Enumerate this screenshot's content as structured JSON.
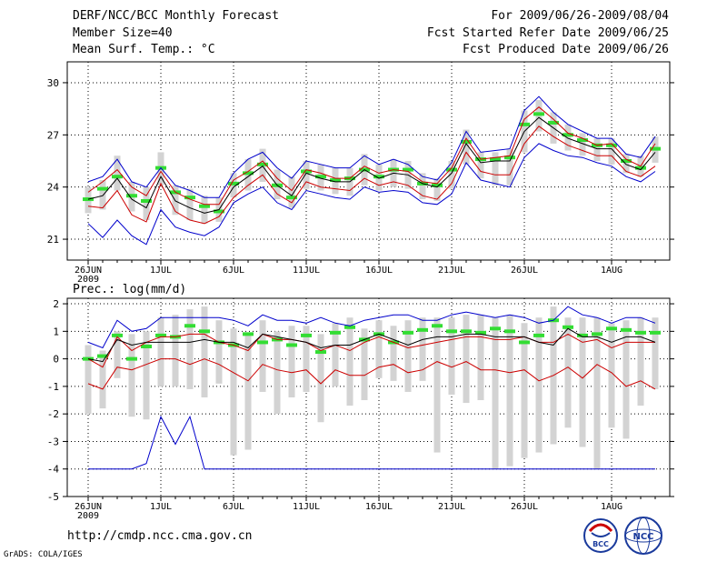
{
  "header": {
    "title": "DERF/NCC/BCC Monthly Forecast",
    "member_size": "Member Size=40",
    "period": "For 2009/06/26-2009/08/04",
    "fcst_started": "Fcst Started Refer Date 2009/06/25",
    "fcst_produced": "Fcst Produced Date 2009/06/26"
  },
  "footer": {
    "url": "http://cmdp.ncc.cma.gov.cn",
    "credit": "GrADS: COLA/IGES",
    "logo_bcc": "BCC",
    "logo_ncc": "NCC"
  },
  "colors": {
    "spread": "#d3d3d3",
    "envelope": "#0000cc",
    "mean": "#000000",
    "bounds": "#cc0000",
    "median": "#33dd33"
  },
  "chart_data": [
    {
      "type": "box-time-series",
      "title": "Mean Surf. Temp.: °C",
      "x_start": 0,
      "x_tick_labels": [
        "26JUN",
        "1JUL",
        "6JUL",
        "11JUL",
        "16JUL",
        "21JUL",
        "26JUL",
        "1AUG"
      ],
      "x_tick_days": [
        0,
        5,
        10,
        15,
        20,
        25,
        30,
        36
      ],
      "x_year_label": "2009",
      "ylim": [
        19.8,
        31.2
      ],
      "yticks": [
        21,
        24,
        27,
        30
      ],
      "days": 40,
      "series": {
        "upper_envelope": [
          24.3,
          24.6,
          25.6,
          24.3,
          24.0,
          25.1,
          24.1,
          23.8,
          23.4,
          23.4,
          24.8,
          25.6,
          26.0,
          25.1,
          24.5,
          25.5,
          25.3,
          25.1,
          25.1,
          25.8,
          25.3,
          25.6,
          25.3,
          24.6,
          24.4,
          25.4,
          27.2,
          26.0,
          26.1,
          26.2,
          28.4,
          29.2,
          28.3,
          27.6,
          27.2,
          26.8,
          26.8,
          25.9,
          25.7,
          26.9
        ],
        "upper_red": [
          23.7,
          24.3,
          25.0,
          24.0,
          23.5,
          24.9,
          23.7,
          23.3,
          23.0,
          23.0,
          24.4,
          24.9,
          25.5,
          24.5,
          23.8,
          25.0,
          24.8,
          24.5,
          24.5,
          25.2,
          24.8,
          25.0,
          24.9,
          24.3,
          24.2,
          25.1,
          26.8,
          25.6,
          25.7,
          25.8,
          27.9,
          28.6,
          27.9,
          27.1,
          26.8,
          26.4,
          26.5,
          25.6,
          25.2,
          26.5
        ],
        "mean": [
          23.3,
          23.5,
          24.5,
          23.3,
          22.8,
          24.6,
          23.2,
          22.8,
          22.5,
          22.7,
          24.0,
          24.6,
          25.2,
          24.1,
          23.5,
          24.8,
          24.5,
          24.3,
          24.3,
          25.0,
          24.5,
          24.8,
          24.7,
          24.2,
          24.0,
          24.8,
          26.5,
          25.4,
          25.5,
          25.5,
          27.2,
          28.0,
          27.4,
          26.8,
          26.5,
          26.2,
          26.2,
          25.3,
          25.0,
          26.0
        ],
        "lower_red": [
          22.9,
          22.8,
          23.8,
          22.4,
          22.0,
          24.2,
          22.6,
          22.1,
          21.9,
          22.3,
          23.4,
          24.1,
          24.7,
          23.6,
          23.1,
          24.3,
          24.0,
          23.9,
          23.8,
          24.5,
          24.1,
          24.3,
          24.1,
          23.5,
          23.3,
          24.2,
          26.0,
          24.9,
          24.7,
          24.7,
          26.5,
          27.5,
          26.9,
          26.4,
          26.1,
          25.8,
          25.8,
          24.9,
          24.6,
          25.2
        ],
        "lower_envelope": [
          21.9,
          21.1,
          22.1,
          21.2,
          20.7,
          22.7,
          21.7,
          21.4,
          21.2,
          21.7,
          23.1,
          23.6,
          24.0,
          23.1,
          22.7,
          23.8,
          23.6,
          23.4,
          23.3,
          24.0,
          23.7,
          23.8,
          23.7,
          23.1,
          23.0,
          23.6,
          25.4,
          24.4,
          24.2,
          24.0,
          25.7,
          26.5,
          26.1,
          25.8,
          25.7,
          25.4,
          25.2,
          24.6,
          24.3,
          24.9
        ],
        "median": [
          23.3,
          23.9,
          24.6,
          23.5,
          23.2,
          25.1,
          23.7,
          23.4,
          22.9,
          22.6,
          24.2,
          24.8,
          25.3,
          24.1,
          23.4,
          24.9,
          24.6,
          24.4,
          24.5,
          25.0,
          24.6,
          25.0,
          25.0,
          24.2,
          24.1,
          25.0,
          26.6,
          25.6,
          25.6,
          25.7,
          27.6,
          28.2,
          27.7,
          27.0,
          26.7,
          26.4,
          26.4,
          25.5,
          25.1,
          26.2
        ],
        "box_top": [
          24.0,
          24.4,
          25.8,
          24.3,
          24.0,
          26.0,
          24.1,
          23.9,
          23.5,
          23.4,
          24.8,
          25.6,
          26.2,
          25.0,
          24.6,
          25.5,
          25.3,
          25.1,
          25.1,
          25.9,
          25.3,
          25.6,
          25.5,
          24.8,
          24.5,
          25.5,
          27.3,
          26.0,
          26.0,
          26.2,
          28.4,
          29.0,
          28.3,
          27.6,
          27.1,
          26.8,
          26.8,
          25.9,
          25.8,
          26.9
        ],
        "box_bottom": [
          22.5,
          22.7,
          23.8,
          22.6,
          22.1,
          24.1,
          22.4,
          22.1,
          21.9,
          22.0,
          23.4,
          23.8,
          24.3,
          23.3,
          22.8,
          23.9,
          23.8,
          23.6,
          23.5,
          24.1,
          23.8,
          24.0,
          23.9,
          23.3,
          23.2,
          23.9,
          25.3,
          24.5,
          24.1,
          24.1,
          26.0,
          27.2,
          26.5,
          26.1,
          25.8,
          25.5,
          25.3,
          24.8,
          24.6,
          25.4
        ]
      }
    },
    {
      "type": "box-time-series",
      "title": "Prec.: log(mm/d)",
      "x_start": 0,
      "x_tick_labels": [
        "26JUN",
        "1JUL",
        "6JUL",
        "11JUL",
        "16JUL",
        "21JUL",
        "26JUL",
        "1AUG"
      ],
      "x_tick_days": [
        0,
        5,
        10,
        15,
        20,
        25,
        30,
        36
      ],
      "x_year_label": "2009",
      "ylim": [
        -5,
        2.2
      ],
      "yticks": [
        -5,
        -4,
        -3,
        -2,
        -1,
        0,
        1,
        2
      ],
      "days": 40,
      "series": {
        "upper_envelope": [
          0.6,
          0.4,
          1.4,
          1.0,
          1.1,
          1.5,
          1.5,
          1.5,
          1.5,
          1.5,
          1.4,
          1.2,
          1.6,
          1.4,
          1.4,
          1.3,
          1.5,
          1.3,
          1.2,
          1.4,
          1.5,
          1.6,
          1.6,
          1.4,
          1.4,
          1.6,
          1.7,
          1.6,
          1.5,
          1.6,
          1.5,
          1.3,
          1.4,
          1.9,
          1.6,
          1.5,
          1.3,
          1.5,
          1.5,
          1.3
        ],
        "upper_red": [
          0.0,
          -0.3,
          0.8,
          0.3,
          0.6,
          0.8,
          0.8,
          0.9,
          0.9,
          0.6,
          0.5,
          0.3,
          0.9,
          0.7,
          0.7,
          0.6,
          0.3,
          0.5,
          0.3,
          0.6,
          0.8,
          0.6,
          0.4,
          0.5,
          0.6,
          0.7,
          0.8,
          0.8,
          0.7,
          0.7,
          0.8,
          0.6,
          0.6,
          0.9,
          0.6,
          0.7,
          0.4,
          0.6,
          0.6,
          0.6
        ],
        "mean": [
          0.0,
          -0.1,
          0.7,
          0.5,
          0.6,
          0.6,
          0.6,
          0.6,
          0.7,
          0.6,
          0.6,
          0.4,
          0.9,
          0.8,
          0.7,
          0.6,
          0.4,
          0.5,
          0.5,
          0.7,
          0.9,
          0.7,
          0.5,
          0.7,
          0.8,
          0.8,
          0.9,
          0.9,
          0.8,
          0.8,
          0.8,
          0.6,
          0.5,
          1.1,
          0.8,
          0.8,
          0.6,
          0.8,
          0.8,
          0.6
        ],
        "lower_red": [
          -0.9,
          -1.1,
          -0.3,
          -0.4,
          -0.2,
          0.0,
          0.0,
          -0.2,
          0.0,
          -0.2,
          -0.5,
          -0.8,
          -0.2,
          -0.4,
          -0.5,
          -0.4,
          -0.9,
          -0.4,
          -0.6,
          -0.6,
          -0.3,
          -0.2,
          -0.5,
          -0.4,
          -0.1,
          -0.3,
          -0.1,
          -0.4,
          -0.4,
          -0.5,
          -0.4,
          -0.8,
          -0.6,
          -0.3,
          -0.7,
          -0.2,
          -0.5,
          -1.0,
          -0.8,
          -1.1
        ],
        "lower_envelope": [
          -4,
          -4,
          -4,
          -4,
          -3.8,
          -2.1,
          -3.1,
          -2.1,
          -4,
          -4,
          -4,
          -4,
          -4,
          -4,
          -4,
          -4,
          -4,
          -4,
          -4,
          -4,
          -4,
          -4,
          -4,
          -4,
          -4,
          -4,
          -4,
          -4,
          -4,
          -4,
          -4,
          -4,
          -4,
          -4,
          -4,
          -4,
          -4,
          -4,
          -4,
          -4
        ],
        "median": [
          0.0,
          0.1,
          0.85,
          0.0,
          0.45,
          0.85,
          0.8,
          1.2,
          1.0,
          0.6,
          0.5,
          0.9,
          0.6,
          0.7,
          0.5,
          0.85,
          0.25,
          0.95,
          1.15,
          0.7,
          0.9,
          0.6,
          0.95,
          1.05,
          1.2,
          1.0,
          1.0,
          0.95,
          1.1,
          1.0,
          0.6,
          0.85,
          1.4,
          1.15,
          0.85,
          0.9,
          1.1,
          1.05,
          0.95,
          0.95
        ],
        "box_top": [
          0.5,
          0.3,
          1.0,
          0.9,
          1.0,
          1.5,
          1.6,
          1.8,
          1.9,
          1.4,
          1.1,
          0.9,
          1.4,
          1.0,
          1.2,
          1.2,
          0.9,
          1.3,
          1.5,
          1.1,
          1.4,
          1.2,
          1.4,
          1.5,
          1.5,
          1.5,
          1.6,
          1.6,
          1.5,
          1.6,
          1.3,
          1.5,
          1.9,
          1.5,
          1.5,
          1.5,
          1.3,
          1.4,
          1.5,
          1.5
        ],
        "box_bottom": [
          -2.0,
          -1.8,
          -0.7,
          -2.1,
          -2.2,
          -1.0,
          -1.0,
          -1.1,
          -1.4,
          -0.9,
          -3.5,
          -3.3,
          -1.2,
          -2.0,
          -1.4,
          -1.2,
          -2.3,
          -1.0,
          -1.7,
          -1.5,
          -0.7,
          -0.8,
          -1.2,
          -0.8,
          -3.4,
          -1.3,
          -1.6,
          -1.5,
          -4.0,
          -3.9,
          -3.6,
          -3.4,
          -3.1,
          -2.5,
          -3.2,
          -4.0,
          -2.5,
          -2.9,
          -1.7,
          -1.1
        ]
      }
    }
  ]
}
